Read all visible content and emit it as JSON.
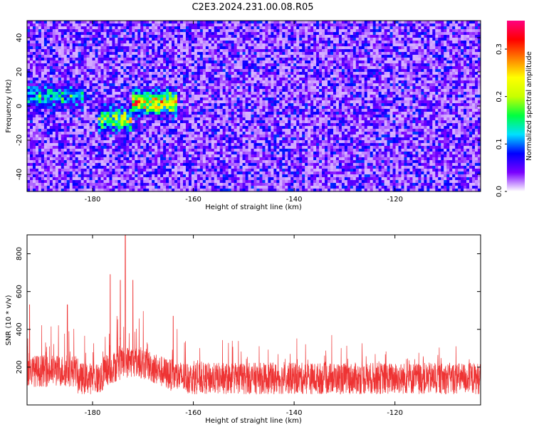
{
  "figure": {
    "title": "C2E3.2024.231.00.08.R05"
  },
  "colorbar": {
    "label": "Normalized spectral amplitude",
    "ticks": [
      "0.0",
      "0.1",
      "0.2",
      "0.3"
    ],
    "range": [
      0,
      0.36
    ],
    "colormap": [
      "#ffffff",
      "#7a00ff",
      "#0000ff",
      "#00e0ff",
      "#00ff40",
      "#c8ff00",
      "#ffff00",
      "#ff8000",
      "#ff0000",
      "#ff0080"
    ]
  },
  "chart_data": [
    {
      "type": "heatmap",
      "title": "C2E3.2024.231.00.08.R05",
      "xlabel": "Height of straight line (km)",
      "ylabel": "Frequency (Hz)",
      "xlim": [
        -193,
        -103
      ],
      "ylim": [
        -50,
        50
      ],
      "xticks": [
        -180,
        -160,
        -140,
        -120
      ],
      "yticks": [
        40,
        20,
        0,
        -20,
        -40
      ],
      "xtick_labels": [
        "-180",
        "-160",
        "-140",
        "-120"
      ],
      "ytick_labels": [
        "40",
        "20",
        "0",
        "-20",
        "-40"
      ],
      "zlim": [
        0,
        0.36
      ],
      "hot_band": {
        "freq_center_hz": 0,
        "segments": [
          {
            "x_range": [
              -193,
              -182
            ],
            "freq_hz": 6,
            "peak": 0.12
          },
          {
            "x_range": [
              -179,
              -172
            ],
            "freq_hz": -8,
            "peak": 0.22
          },
          {
            "x_range": [
              -172,
              -163
            ],
            "freq_hz": 2,
            "peak": 0.3
          }
        ]
      },
      "background_level": 0.04
    },
    {
      "type": "line",
      "xlabel": "Height of straight line (km)",
      "ylabel": "SNR (10 * v/v)",
      "xlim": [
        -193,
        -103
      ],
      "ylim": [
        0,
        900
      ],
      "xticks": [
        -180,
        -160,
        -140,
        -120
      ],
      "yticks": [
        800,
        600,
        400,
        200
      ],
      "xtick_labels": [
        "-180",
        "-160",
        "-140",
        "-120"
      ],
      "ytick_labels": [
        "800",
        "600",
        "400",
        "200"
      ],
      "color": "#ee3333",
      "series_profile": {
        "base_mean": 140,
        "noise_spread": 120,
        "peaks": [
          {
            "x": -173.5,
            "y": 900
          },
          {
            "x": -176.5,
            "y": 690
          },
          {
            "x": -174.5,
            "y": 660
          },
          {
            "x": -172,
            "y": 660
          },
          {
            "x": -192.5,
            "y": 530
          },
          {
            "x": -185,
            "y": 530
          },
          {
            "x": -164,
            "y": 470
          }
        ]
      }
    }
  ]
}
